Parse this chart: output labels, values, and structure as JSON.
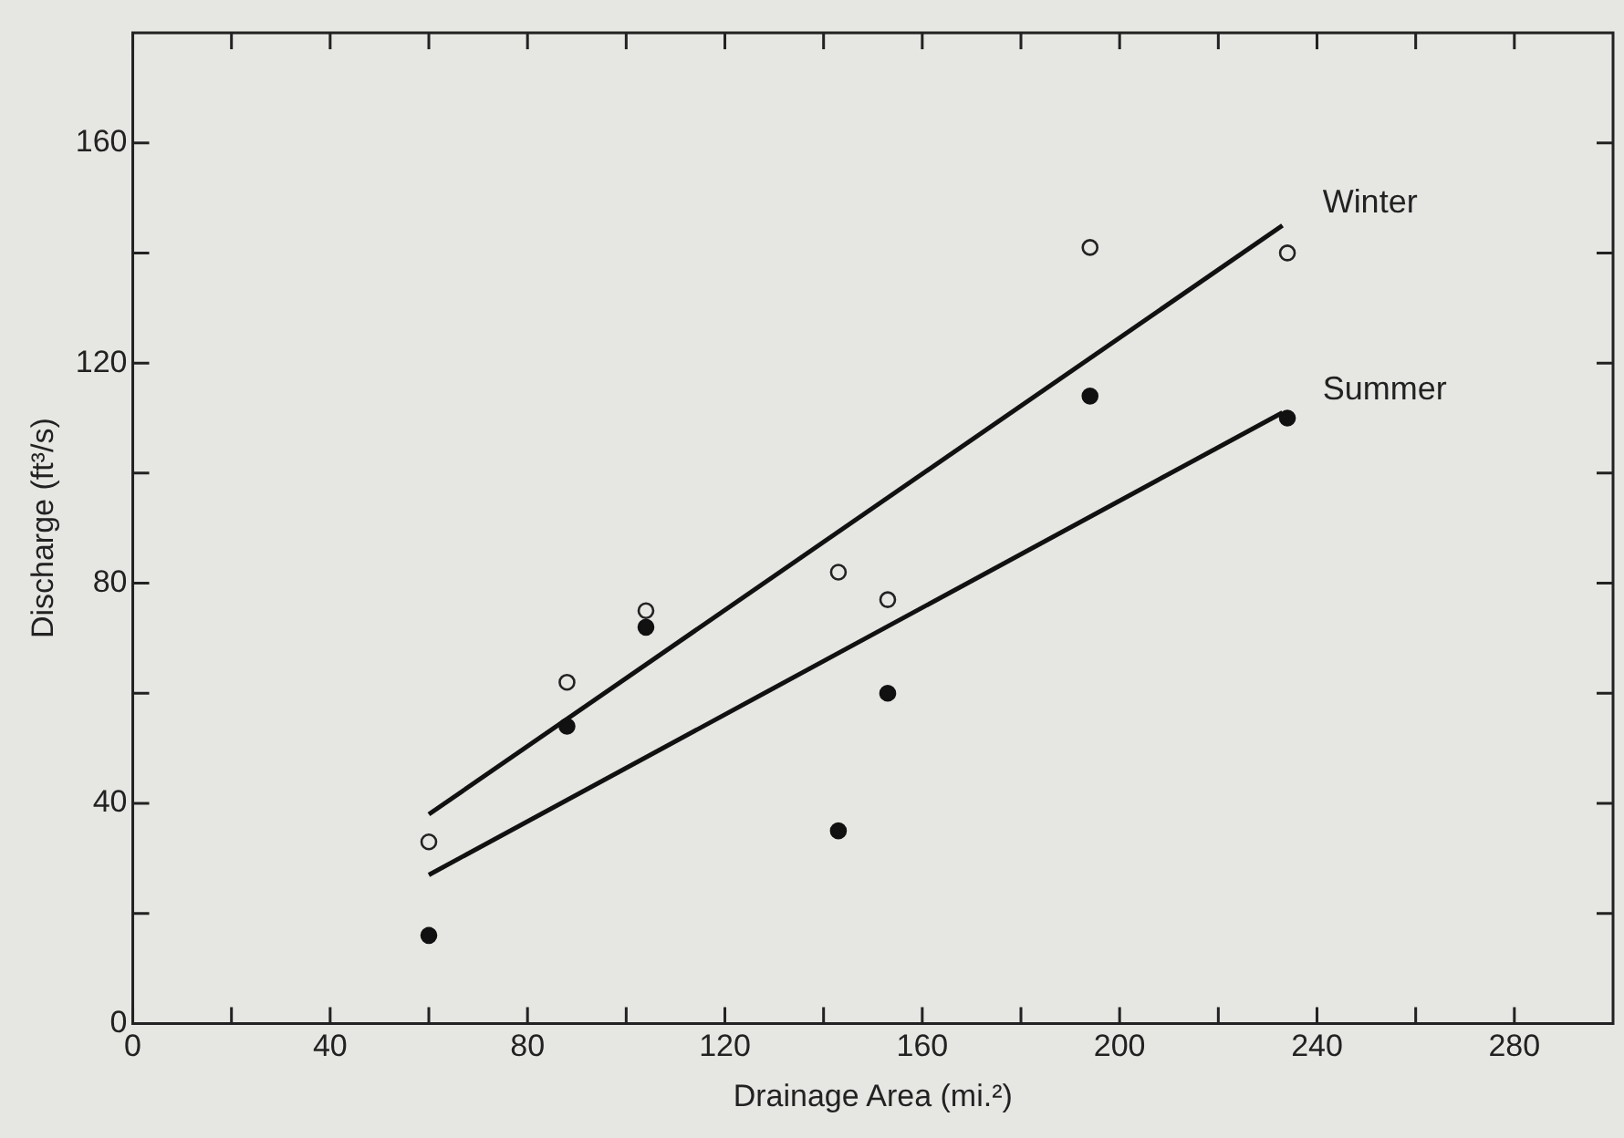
{
  "chart_data": {
    "type": "scatter",
    "xlabel": "Drainage Area (mi.²)",
    "ylabel": "Discharge (ft³/s)",
    "xlim": [
      0,
      300
    ],
    "ylim": [
      0,
      180
    ],
    "xticks": [
      0,
      {
        "value": 20,
        "label": null
      },
      40,
      {
        "value": 60,
        "label": null
      },
      80,
      {
        "value": 100,
        "label": null
      },
      120,
      {
        "value": 140,
        "label": null
      },
      160,
      {
        "value": 180,
        "label": null
      },
      200,
      {
        "value": 220,
        "label": null
      },
      240,
      {
        "value": 260,
        "label": null
      },
      280
    ],
    "yticks": [
      0,
      {
        "value": 20,
        "label": null
      },
      40,
      {
        "value": 60,
        "label": null
      },
      80,
      {
        "value": 100,
        "label": null
      },
      120,
      {
        "value": 140,
        "label": null
      },
      160
    ],
    "grid": false,
    "legend": false,
    "series": [
      {
        "marker": "circle",
        "color": "#222222",
        "x": [
          60,
          88,
          104,
          143,
          153,
          194,
          234
        ],
        "values": [
          33,
          62,
          75,
          82,
          77,
          141,
          140
        ]
      },
      {
        "marker": "circle",
        "color": "#111111",
        "x": [
          60,
          88,
          104,
          143,
          153,
          194,
          234
        ],
        "values": [
          16,
          54,
          72,
          35,
          60,
          114,
          110
        ]
      },
      {
        "type": "line",
        "marker": "none",
        "name": "Winter",
        "color": "#111111",
        "x": [
          60,
          233
        ],
        "values": [
          38,
          145
        ]
      },
      {
        "type": "line",
        "marker": "none",
        "name": "Summer",
        "color": "#111111",
        "x": [
          60,
          233
        ],
        "values": [
          27,
          111
        ]
      }
    ]
  }
}
